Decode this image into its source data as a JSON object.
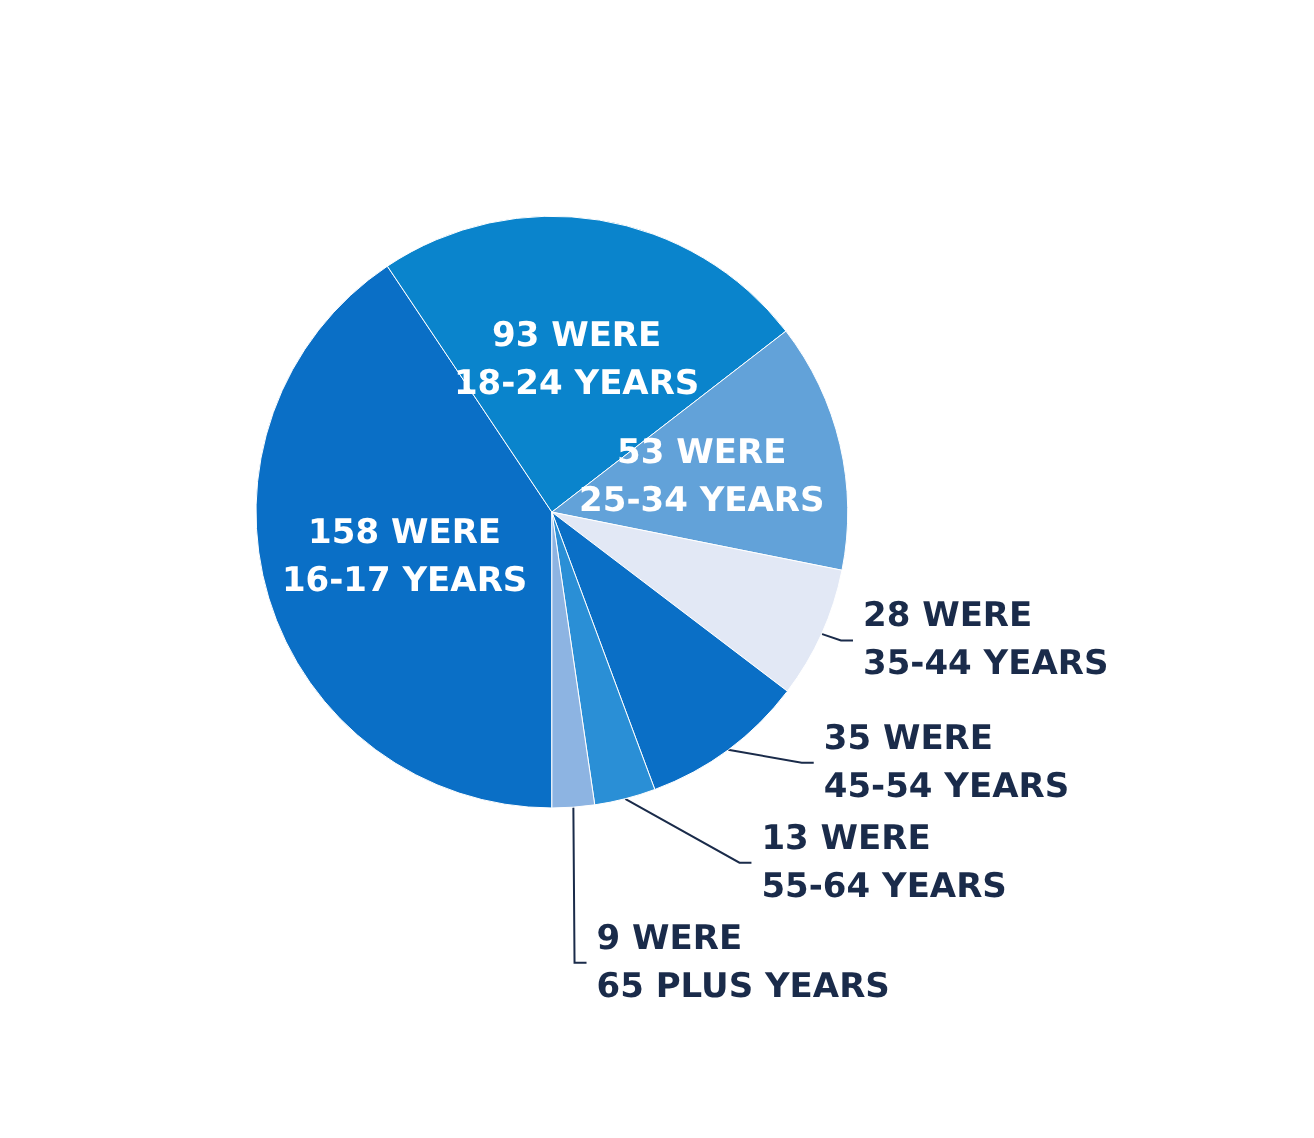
{
  "chart_data": {
    "type": "pie",
    "categories": [
      "16-17 YEARS",
      "18-24 YEARS",
      "25-34 YEARS",
      "35-44 YEARS",
      "45-54 YEARS",
      "55-64 YEARS",
      "65 PLUS YEARS"
    ],
    "values": [
      158,
      93,
      53,
      28,
      35,
      13,
      9
    ],
    "value_labels": [
      "158 WERE",
      "93 WERE",
      "53 WERE",
      "28 WERE",
      "35 WERE",
      "13 WERE",
      "9 WERE"
    ],
    "colors": [
      "#0a6fc6",
      "#0a84cc",
      "#62a2d9",
      "#e2e8f5",
      "#0a6fc6",
      "#2a8fd6",
      "#8db4e2"
    ],
    "legend": false
  }
}
